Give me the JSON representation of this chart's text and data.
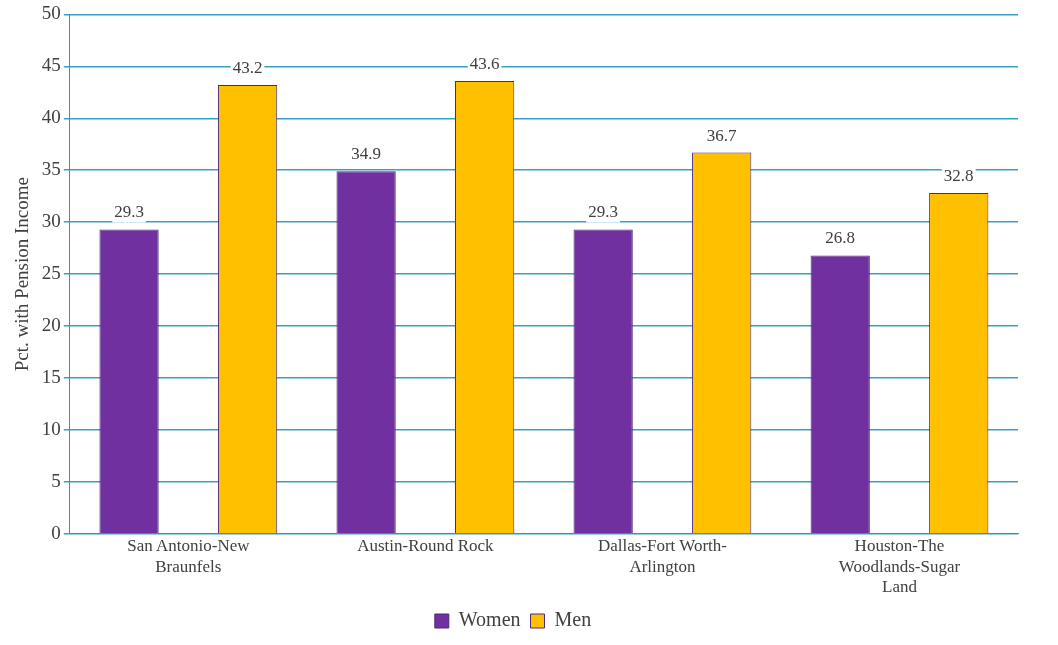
{
  "chart_data": {
    "type": "bar",
    "ylabel": "Pct. with Pension Income",
    "categories": [
      "San Antonio-New Braunfels",
      "Austin-Round Rock",
      "Dallas-Fort Worth-Arlington",
      "Houston-The Woodlands-Sugar Land"
    ],
    "series": [
      {
        "name": "Women",
        "color": "#7030a0",
        "values": [
          29.3,
          34.9,
          29.3,
          26.8
        ]
      },
      {
        "name": "Men",
        "color": "#ffc000",
        "values": [
          43.2,
          43.6,
          36.7,
          32.8
        ]
      }
    ],
    "ylim": [
      0,
      50
    ],
    "yticks": [
      0,
      5,
      10,
      15,
      20,
      25,
      30,
      35,
      40,
      45,
      50
    ],
    "grid": "y",
    "legend": "bottom",
    "data_labels": true
  }
}
